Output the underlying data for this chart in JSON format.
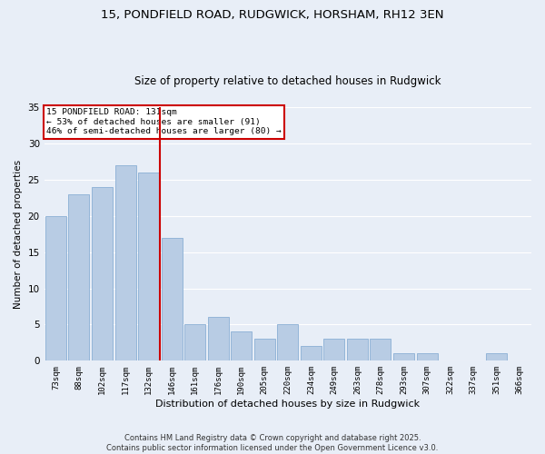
{
  "title_line1": "15, PONDFIELD ROAD, RUDGWICK, HORSHAM, RH12 3EN",
  "title_line2": "Size of property relative to detached houses in Rudgwick",
  "xlabel": "Distribution of detached houses by size in Rudgwick",
  "ylabel": "Number of detached properties",
  "categories": [
    "73sqm",
    "88sqm",
    "102sqm",
    "117sqm",
    "132sqm",
    "146sqm",
    "161sqm",
    "176sqm",
    "190sqm",
    "205sqm",
    "220sqm",
    "234sqm",
    "249sqm",
    "263sqm",
    "278sqm",
    "293sqm",
    "307sqm",
    "322sqm",
    "337sqm",
    "351sqm",
    "366sqm"
  ],
  "values": [
    20,
    23,
    24,
    27,
    26,
    17,
    5,
    6,
    4,
    3,
    5,
    2,
    3,
    3,
    3,
    1,
    1,
    0,
    0,
    1,
    0
  ],
  "bar_color": "#b8cce4",
  "bar_edge_color": "#8aafd4",
  "vline_x": 4.5,
  "vline_color": "#cc0000",
  "annotation_text": "15 PONDFIELD ROAD: 131sqm\n← 53% of detached houses are smaller (91)\n46% of semi-detached houses are larger (80) →",
  "annotation_box_color": "#ffffff",
  "annotation_box_edge": "#cc0000",
  "ylim": [
    0,
    35
  ],
  "yticks": [
    0,
    5,
    10,
    15,
    20,
    25,
    30,
    35
  ],
  "bg_color": "#e8eef7",
  "grid_color": "#ffffff",
  "footer_text": "Contains HM Land Registry data © Crown copyright and database right 2025.\nContains public sector information licensed under the Open Government Licence v3.0."
}
